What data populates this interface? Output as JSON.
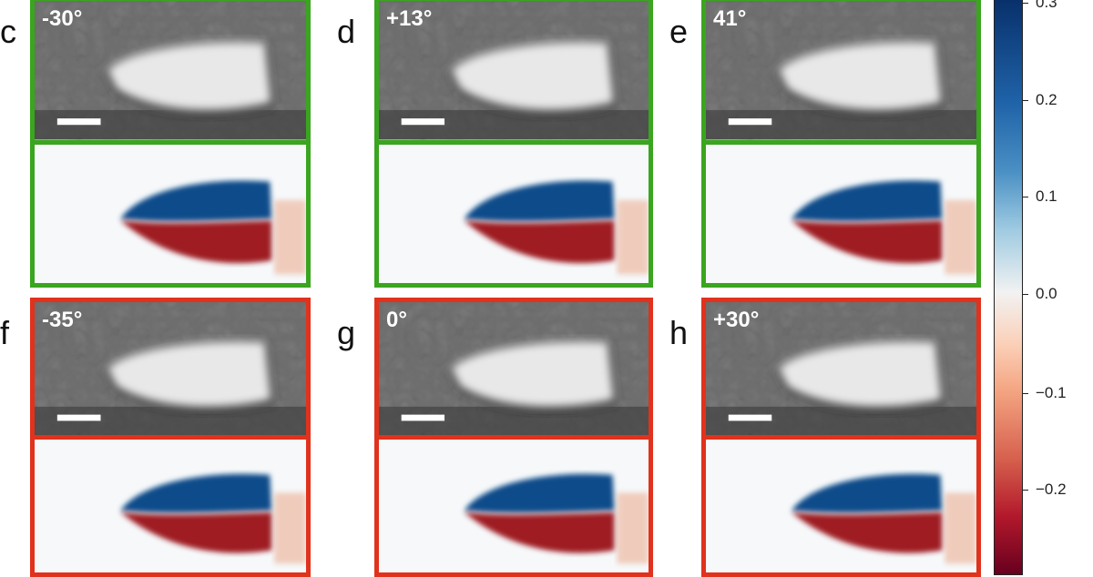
{
  "panels": [
    {
      "letter": "c",
      "angle": "-30°",
      "frame": "#3aa51f"
    },
    {
      "letter": "d",
      "angle": "+13°",
      "frame": "#3aa51f"
    },
    {
      "letter": "e",
      "angle": "41°",
      "frame": "#3aa51f"
    },
    {
      "letter": "f",
      "angle": "-35°",
      "frame": "#e0321c"
    },
    {
      "letter": "g",
      "angle": "0°",
      "frame": "#e0321c"
    },
    {
      "letter": "h",
      "angle": "+30°",
      "frame": "#e0321c"
    }
  ],
  "colorbar": {
    "colormap": "RdBu",
    "range": [
      -0.28,
      0.3
    ],
    "ticks": [
      "0.3",
      "0.2",
      "0.1",
      "0.0",
      "−0.1",
      "−0.2"
    ],
    "tick_values": [
      0.3,
      0.2,
      0.1,
      0.0,
      -0.1,
      -0.2
    ]
  }
}
